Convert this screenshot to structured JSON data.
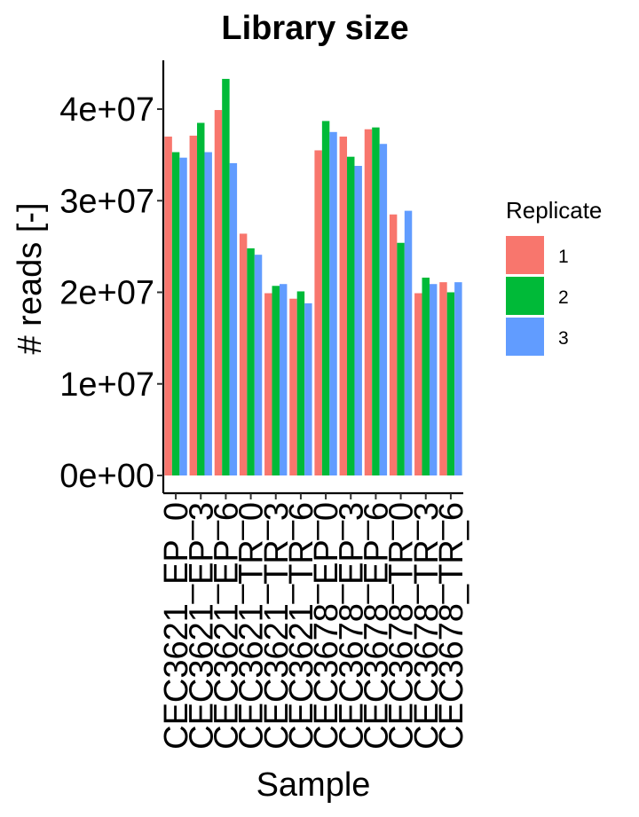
{
  "chart_data": {
    "type": "bar",
    "title": "Library size",
    "xlabel": "Sample",
    "ylabel": "# reads [-]",
    "ylim": [
      0,
      45000000
    ],
    "yticks": [
      0,
      10000000,
      20000000,
      30000000,
      40000000
    ],
    "ytick_labels": [
      "0e+00",
      "1e+07",
      "2e+07",
      "3e+07",
      "4e+07"
    ],
    "grid": false,
    "legend": {
      "title": "Replicate",
      "placement": "right"
    },
    "categories": [
      "CEC3621_EP_0",
      "CEC3621_EP_3",
      "CEC3621_EP_6",
      "CEC3621_TR_0",
      "CEC3621_TR_3",
      "CEC3621_TR_6",
      "CEC3678_EP_0",
      "CEC3678_EP_3",
      "CEC3678_EP_6",
      "CEC3678_TR_0",
      "CEC3678_TR_3",
      "CEC3678_TR_6"
    ],
    "series": [
      {
        "name": "1",
        "color": "#F8766D",
        "values": [
          37000000,
          37100000,
          39900000,
          26400000,
          19900000,
          19300000,
          35500000,
          37000000,
          37800000,
          28500000,
          19900000,
          21100000
        ]
      },
      {
        "name": "2",
        "color": "#00BA38",
        "values": [
          35300000,
          38500000,
          43300000,
          24800000,
          20700000,
          20100000,
          38700000,
          34800000,
          38000000,
          25400000,
          21600000,
          20000000
        ]
      },
      {
        "name": "3",
        "color": "#619CFF",
        "values": [
          34700000,
          35300000,
          34100000,
          24100000,
          20900000,
          18800000,
          37500000,
          33800000,
          36200000,
          28900000,
          20900000,
          21100000
        ]
      }
    ]
  }
}
